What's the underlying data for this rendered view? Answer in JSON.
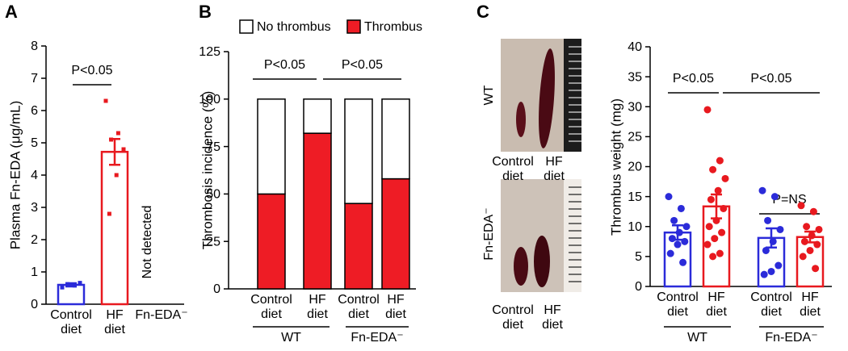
{
  "panel_labels": [
    "A",
    "B",
    "C"
  ],
  "chart_data": [
    {
      "type": "bar",
      "ylabel": "Plasma Fn-EDA (μg/mL)",
      "categories": [
        "Control\ndiet",
        "HF\ndiet",
        "Fn-EDA⁻"
      ],
      "values": [
        0.6,
        4.72,
        null
      ],
      "errors": [
        0.05,
        0.4,
        null
      ],
      "points": [
        [
          0.52,
          0.58,
          0.62,
          0.66,
          0.6
        ],
        [
          6.3,
          5.3,
          5.1,
          4.8,
          4.0,
          2.8
        ],
        []
      ],
      "colors": [
        "#2b2bd9",
        "#e8191f"
      ],
      "brackets": [
        "P<0.05"
      ],
      "note": "Not detected",
      "ylim": [
        0,
        8
      ],
      "yticks": [
        0,
        1,
        2,
        3,
        4,
        5,
        6,
        7,
        8
      ]
    },
    {
      "type": "stacked_bar",
      "ylabel": "Thrombosis incidence (%)",
      "categories": [
        "Control\ndiet",
        "HF\ndiet",
        "Control\ndiet",
        "HF\ndiet"
      ],
      "groups": [
        "WT",
        "Fn-EDA⁻"
      ],
      "series": [
        {
          "name": "No thrombus",
          "color": "#ffffff",
          "values": [
            50,
            18,
            55,
            42
          ]
        },
        {
          "name": "Thrombus",
          "color": "#ee1c25",
          "values": [
            50,
            82,
            45,
            58
          ]
        }
      ],
      "brackets": [
        "P<0.05",
        "P<0.05"
      ],
      "ylim": [
        0,
        125
      ],
      "yticks": [
        0,
        25,
        50,
        75,
        100,
        125
      ]
    },
    {
      "type": "bar",
      "ylabel": "Thrombus weight (mg)",
      "categories": [
        "Control\ndiet",
        "HF\ndiet",
        "Control\ndiet",
        "HF\ndiet"
      ],
      "groups": [
        "WT",
        "Fn-EDA⁻"
      ],
      "values": [
        9,
        13.36,
        8.1,
        8.25
      ],
      "errors": [
        1.2,
        2,
        1.6,
        0.9
      ],
      "points": [
        [
          15,
          13,
          11,
          10,
          9,
          8,
          7.5,
          7,
          5.5,
          4
        ],
        [
          29.5,
          21,
          19.5,
          18,
          16,
          14.5,
          13,
          11,
          10,
          9,
          8,
          7,
          5.5,
          5
        ],
        [
          16,
          15,
          11,
          9.5,
          7.5,
          6,
          3.5,
          2.5,
          2
        ],
        [
          13.5,
          12.5,
          10,
          9.5,
          8.5,
          7.5,
          7,
          6,
          5,
          3
        ]
      ],
      "colors": [
        "#2b2bd9",
        "#e8191f",
        "#2b2bd9",
        "#e8191f"
      ],
      "brackets": [
        "P<0.05",
        "P<0.05",
        "P=NS"
      ],
      "ylim": [
        0,
        40
      ],
      "yticks": [
        0,
        5,
        10,
        15,
        20,
        25,
        30,
        35,
        40
      ]
    }
  ],
  "photo_panel": {
    "row_labels": [
      "WT",
      "Fn-EDA⁻"
    ],
    "captions": [
      "Control\ndiet",
      "HF\ndiet"
    ]
  }
}
